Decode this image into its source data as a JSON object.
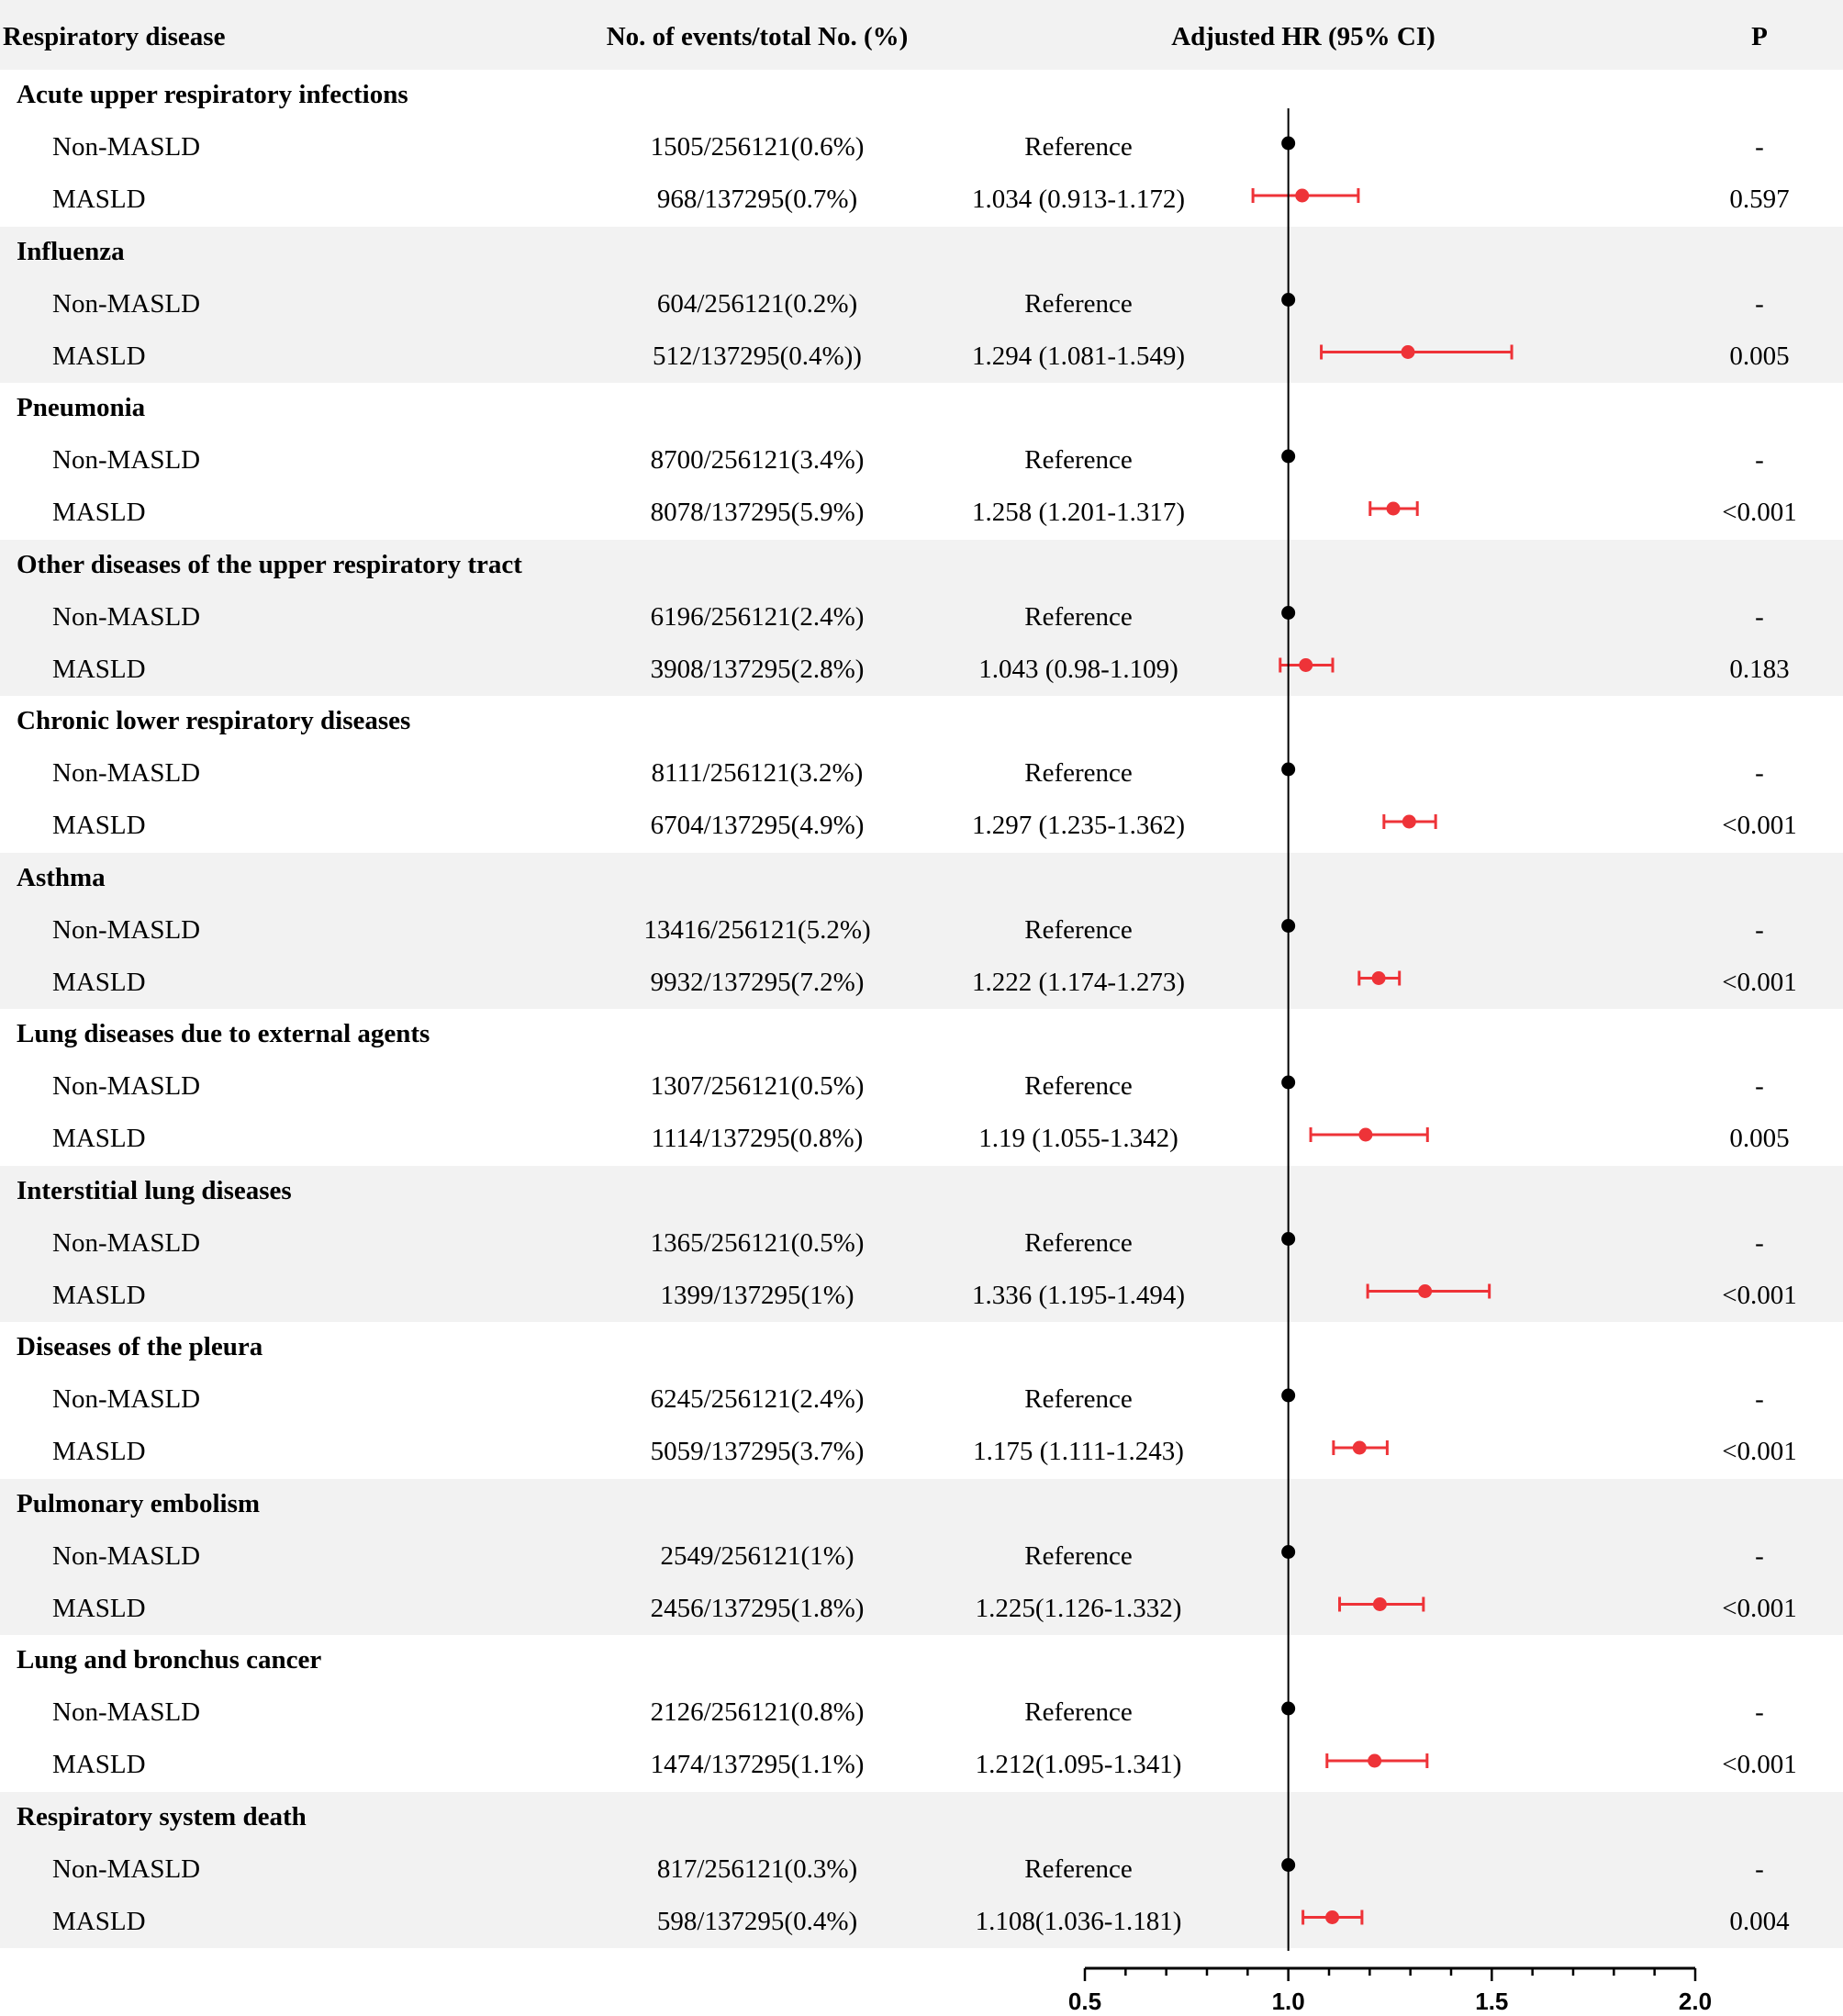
{
  "header": {
    "disease": "Respiratory disease",
    "events": "No. of events/total No. (%)",
    "hr": "Adjusted HR (95% CI)",
    "p": "P"
  },
  "colors": {
    "reference": "#000000",
    "masld": "#ee3338",
    "band": "#f2f2f2"
  },
  "chart_data": {
    "type": "forest",
    "x_axis": {
      "ticks": [
        0.5,
        1.0,
        1.5,
        2.0
      ],
      "tick_labels": [
        "0.5",
        "1.0",
        "1.5",
        "2.0"
      ],
      "range": [
        0.5,
        2.0
      ],
      "reference_line": 1.0
    },
    "groups": [
      {
        "name": "Acute upper respiratory infections",
        "rows": [
          {
            "label": "Non-MASLD",
            "events": "1505/256121(0.6%)",
            "hr_text": "Reference",
            "p": "-",
            "hr": 1.0
          },
          {
            "label": "MASLD",
            "events": "968/137295(0.7%)",
            "hr_text": "1.034 (0.913-1.172)",
            "p": "0.597",
            "hr": 1.034,
            "lo": 0.913,
            "hi": 1.172
          }
        ]
      },
      {
        "name": "Influenza",
        "rows": [
          {
            "label": "Non-MASLD",
            "events": "604/256121(0.2%)",
            "hr_text": "Reference",
            "p": "-",
            "hr": 1.0
          },
          {
            "label": "MASLD",
            "events": "512/137295(0.4%))",
            "hr_text": "1.294 (1.081-1.549)",
            "p": "0.005",
            "hr": 1.294,
            "lo": 1.081,
            "hi": 1.549
          }
        ]
      },
      {
        "name": "Pneumonia",
        "rows": [
          {
            "label": "Non-MASLD",
            "events": "8700/256121(3.4%)",
            "hr_text": "Reference",
            "p": "-",
            "hr": 1.0
          },
          {
            "label": "MASLD",
            "events": "8078/137295(5.9%)",
            "hr_text": "1.258 (1.201-1.317)",
            "p": "<0.001",
            "hr": 1.258,
            "lo": 1.201,
            "hi": 1.317
          }
        ]
      },
      {
        "name": "Other diseases of the upper respiratory tract",
        "rows": [
          {
            "label": "Non-MASLD",
            "events": "6196/256121(2.4%)",
            "hr_text": "Reference",
            "p": "-",
            "hr": 1.0
          },
          {
            "label": "MASLD",
            "events": "3908/137295(2.8%)",
            "hr_text": "1.043 (0.98-1.109)",
            "p": "0.183",
            "hr": 1.043,
            "lo": 0.98,
            "hi": 1.109
          }
        ]
      },
      {
        "name": "Chronic lower respiratory diseases",
        "rows": [
          {
            "label": "Non-MASLD",
            "events": "8111/256121(3.2%)",
            "hr_text": "Reference",
            "p": "-",
            "hr": 1.0
          },
          {
            "label": "MASLD",
            "events": "6704/137295(4.9%)",
            "hr_text": "1.297 (1.235-1.362)",
            "p": "<0.001",
            "hr": 1.297,
            "lo": 1.235,
            "hi": 1.362
          }
        ]
      },
      {
        "name": "Asthma",
        "rows": [
          {
            "label": "Non-MASLD",
            "events": "13416/256121(5.2%)",
            "hr_text": "Reference",
            "p": "-",
            "hr": 1.0
          },
          {
            "label": "MASLD",
            "events": "9932/137295(7.2%)",
            "hr_text": "1.222 (1.174-1.273)",
            "p": "<0.001",
            "hr": 1.222,
            "lo": 1.174,
            "hi": 1.273
          }
        ]
      },
      {
        "name": "Lung diseases due to external agents",
        "rows": [
          {
            "label": "Non-MASLD",
            "events": "1307/256121(0.5%)",
            "hr_text": "Reference",
            "p": "-",
            "hr": 1.0
          },
          {
            "label": "MASLD",
            "events": "1114/137295(0.8%)",
            "hr_text": "1.19 (1.055-1.342)",
            "p": "0.005",
            "hr": 1.19,
            "lo": 1.055,
            "hi": 1.342
          }
        ]
      },
      {
        "name": "Interstitial lung diseases",
        "rows": [
          {
            "label": "Non-MASLD",
            "events": "1365/256121(0.5%)",
            "hr_text": "Reference",
            "p": "-",
            "hr": 1.0
          },
          {
            "label": "MASLD",
            "events": "1399/137295(1%)",
            "hr_text": "1.336 (1.195-1.494)",
            "p": "<0.001",
            "hr": 1.336,
            "lo": 1.195,
            "hi": 1.494
          }
        ]
      },
      {
        "name": "Diseases of the pleura",
        "rows": [
          {
            "label": "Non-MASLD",
            "events": "6245/256121(2.4%)",
            "hr_text": "Reference",
            "p": "-",
            "hr": 1.0
          },
          {
            "label": "MASLD",
            "events": "5059/137295(3.7%)",
            "hr_text": "1.175 (1.111-1.243)",
            "p": "<0.001",
            "hr": 1.175,
            "lo": 1.111,
            "hi": 1.243
          }
        ]
      },
      {
        "name": "Pulmonary embolism",
        "rows": [
          {
            "label": "Non-MASLD",
            "events": "2549/256121(1%)",
            "hr_text": "Reference",
            "p": "-",
            "hr": 1.0
          },
          {
            "label": "MASLD",
            "events": "2456/137295(1.8%)",
            "hr_text": "1.225(1.126-1.332)",
            "p": "<0.001",
            "hr": 1.225,
            "lo": 1.126,
            "hi": 1.332
          }
        ]
      },
      {
        "name": "Lung and bronchus cancer",
        "rows": [
          {
            "label": "Non-MASLD",
            "events": "2126/256121(0.8%)",
            "hr_text": "Reference",
            "p": "-",
            "hr": 1.0
          },
          {
            "label": "MASLD",
            "events": "1474/137295(1.1%)",
            "hr_text": "1.212(1.095-1.341)",
            "p": "<0.001",
            "hr": 1.212,
            "lo": 1.095,
            "hi": 1.341
          }
        ]
      },
      {
        "name": "Respiratory system death",
        "rows": [
          {
            "label": "Non-MASLD",
            "events": "817/256121(0.3%)",
            "hr_text": "Reference",
            "p": "-",
            "hr": 1.0
          },
          {
            "label": "MASLD",
            "events": "598/137295(0.4%)",
            "hr_text": "1.108(1.036-1.181)",
            "p": "0.004",
            "hr": 1.108,
            "lo": 1.036,
            "hi": 1.181
          }
        ]
      }
    ]
  }
}
